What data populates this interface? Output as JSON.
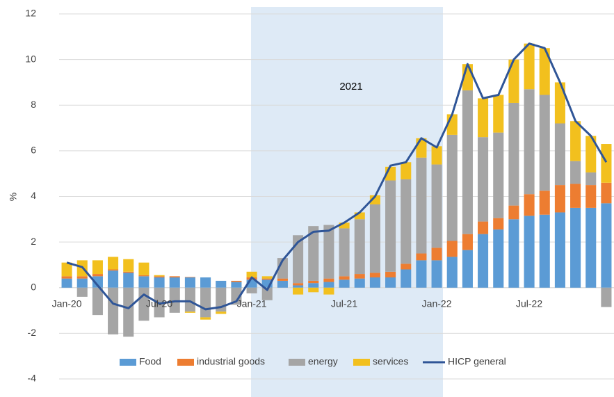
{
  "chart_data": {
    "type": "bar",
    "annotation": "2021",
    "y_label": "%",
    "categories": [
      "Jan-20",
      null,
      null,
      null,
      null,
      null,
      "Jul-20",
      null,
      null,
      null,
      null,
      null,
      "Jan-21",
      null,
      null,
      null,
      null,
      null,
      "Jul-21",
      null,
      null,
      null,
      null,
      null,
      "Jan-22",
      null,
      null,
      null,
      null,
      null,
      "Jul-22",
      null,
      null,
      null,
      null,
      null
    ],
    "series": [
      {
        "name": "Food",
        "type": "bar",
        "color": "#5b9bd5",
        "values": [
          0.4,
          0.4,
          0.5,
          0.75,
          0.65,
          0.5,
          0.45,
          0.45,
          0.45,
          0.45,
          0.3,
          0.25,
          0.35,
          0.35,
          0.3,
          0.1,
          0.2,
          0.25,
          0.35,
          0.4,
          0.45,
          0.45,
          0.8,
          1.2,
          1.2,
          1.35,
          1.65,
          2.35,
          2.55,
          3.0,
          3.15,
          3.2,
          3.3,
          3.5,
          3.5,
          3.7
        ]
      },
      {
        "name": "industrial goods",
        "type": "bar",
        "color": "#ed7d31",
        "values": [
          0.1,
          0.1,
          0.1,
          0.05,
          0.05,
          0.05,
          0.05,
          0.05,
          0.02,
          0,
          0,
          0.05,
          0.1,
          0.05,
          0.1,
          0.1,
          0.1,
          0.15,
          0.15,
          0.2,
          0.2,
          0.25,
          0.25,
          0.3,
          0.55,
          0.7,
          0.7,
          0.55,
          0.5,
          0.6,
          0.95,
          1.05,
          1.2,
          1.05,
          1.0,
          0.9
        ]
      },
      {
        "name": "energy",
        "type": "bar",
        "color": "#a5a5a5",
        "values": [
          0,
          -0.4,
          -1.2,
          -2.05,
          -2.15,
          -1.45,
          -1.3,
          -1.1,
          -1.05,
          -1.3,
          -1.05,
          -0.75,
          -0.25,
          -0.55,
          0.9,
          2.1,
          2.4,
          2.35,
          2.1,
          2.4,
          3.0,
          4.0,
          3.7,
          4.2,
          3.65,
          4.65,
          6.3,
          3.7,
          3.75,
          4.5,
          4.6,
          4.2,
          2.7,
          1.0,
          0.55,
          -0.85
        ]
      },
      {
        "name": "services",
        "type": "bar",
        "color": "#f2c01e",
        "values": [
          0.6,
          0.7,
          0.6,
          0.55,
          0.55,
          0.55,
          0.05,
          0.0,
          -0.05,
          -0.1,
          -0.1,
          0.0,
          0.25,
          0.1,
          0.0,
          -0.3,
          -0.2,
          -0.3,
          0.25,
          0.3,
          0.4,
          0.6,
          0.75,
          0.85,
          0.8,
          0.9,
          1.15,
          1.7,
          1.65,
          1.9,
          2.0,
          2.05,
          1.8,
          1.75,
          1.6,
          1.7
        ]
      },
      {
        "name": "HICP general",
        "type": "line",
        "color": "#2f5597",
        "values": [
          1.1,
          0.9,
          0.1,
          -0.7,
          -0.9,
          -0.3,
          -0.7,
          -0.6,
          -0.6,
          -0.95,
          -0.85,
          -0.6,
          0.45,
          -0.1,
          1.2,
          2.0,
          2.45,
          2.5,
          2.85,
          3.3,
          4.0,
          5.35,
          5.5,
          6.55,
          6.15,
          7.6,
          9.8,
          8.3,
          8.45,
          10.0,
          10.7,
          10.5,
          9.0,
          7.3,
          6.65,
          5.5
        ]
      }
    ],
    "ylim": [
      -4,
      12
    ],
    "yticks": [
      -4,
      -2,
      0,
      2,
      4,
      6,
      8,
      10,
      12
    ],
    "grid": true
  }
}
